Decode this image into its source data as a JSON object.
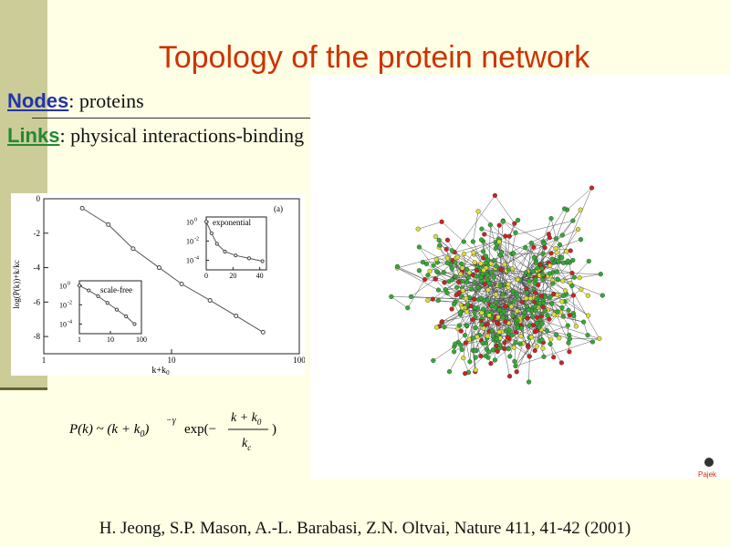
{
  "slide": {
    "title": "Topology of the protein network",
    "nodes_label": "Nodes",
    "nodes_text": ": proteins",
    "links_label": "Links",
    "links_text": ": physical interactions-binding",
    "citation": "H. Jeong, S.P. Mason, A.-L. Barabasi, Z.N. Oltvai, Nature 411, 41-42 (2001)",
    "network_credit": "Pajek"
  },
  "main_plot": {
    "ylabel": "log(P(k))+k/kc",
    "xlabel": "k+k",
    "xlabel_sub": "0",
    "panel_label": "(a)",
    "x_ticks": [
      "1",
      "10",
      "100"
    ],
    "y_ticks": [
      "0",
      "-2",
      "-4",
      "-6",
      "-8"
    ],
    "x_log_range": [
      1,
      100
    ],
    "y_range": [
      -9,
      0
    ]
  },
  "inset_exponential": {
    "label": "exponential",
    "y_ticks": [
      {
        "base": "10",
        "exp": "0"
      },
      {
        "base": "10",
        "exp": "-2"
      },
      {
        "base": "10",
        "exp": "-4"
      }
    ],
    "x_ticks": [
      "0",
      "20",
      "40"
    ]
  },
  "inset_scalefree": {
    "label": "scale-free",
    "y_ticks": [
      {
        "base": "10",
        "exp": "0"
      },
      {
        "base": "10",
        "exp": "-2"
      },
      {
        "base": "10",
        "exp": "-4"
      }
    ],
    "x_ticks": [
      "1",
      "10",
      "100"
    ]
  },
  "chart_data": [
    {
      "type": "scatter",
      "name": "main",
      "x": [
        2,
        3.2,
        5,
        8,
        12,
        20,
        32,
        52
      ],
      "y": [
        -0.55,
        -1.5,
        -2.9,
        -4.0,
        -4.95,
        -5.9,
        -6.8,
        -7.75
      ],
      "xscale": "log",
      "xlim": [
        1,
        100
      ],
      "ylim": [
        -9,
        0
      ]
    },
    {
      "type": "line",
      "name": "exponential-inset",
      "x": [
        0,
        4,
        8,
        14,
        22,
        32,
        42
      ],
      "y": [
        0,
        -1.2,
        -2.3,
        -3.1,
        -3.5,
        -3.8,
        -4.1
      ],
      "xlim": [
        0,
        45
      ],
      "ylim": [
        -5,
        0.5
      ]
    },
    {
      "type": "line",
      "name": "scale-free-inset",
      "x": [
        1,
        2,
        4,
        8,
        16,
        32,
        60
      ],
      "y": [
        0,
        -0.5,
        -1.1,
        -1.8,
        -2.5,
        -3.2,
        -4.0
      ],
      "xscale": "log",
      "xlim": [
        1,
        100
      ],
      "ylim": [
        -5,
        0.5
      ]
    }
  ],
  "formula": {
    "lhs": "P(k) ~ (k + k",
    "sub0": "0",
    "rhs": ")",
    "sup": "−γ",
    "exp": "exp(−",
    "num": "k + k",
    "num_sub": "0",
    "den": "k",
    "den_sub": "c",
    "close": ")"
  }
}
